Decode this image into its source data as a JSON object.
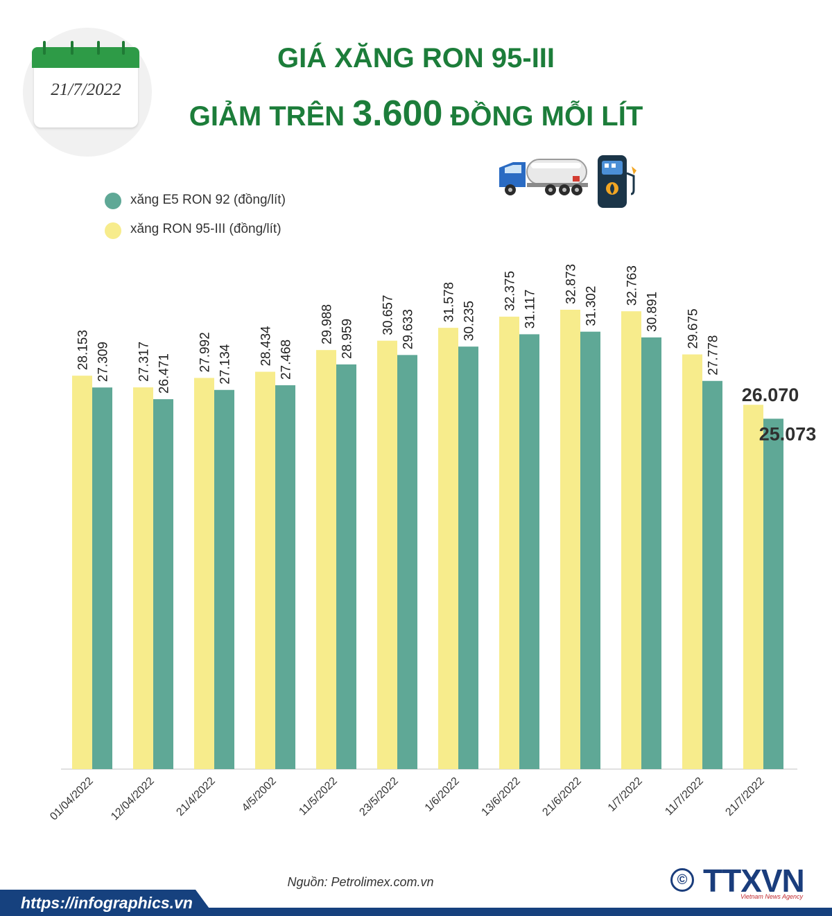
{
  "date_badge": "21/7/2022",
  "title": {
    "line1": "GIÁ XĂNG RON 95-III",
    "line2_prefix": "GIẢM TRÊN",
    "line2_number": "3.600",
    "line2_suffix": "ĐỒNG MỖI LÍT"
  },
  "colors": {
    "title": "#1c7d3a",
    "ron95": "#f7ec8c",
    "e5": "#5fa896",
    "footer": "#16417e"
  },
  "icons": [
    "calendar-icon",
    "fuel-truck-icon",
    "fuel-pump-icon"
  ],
  "chart_data": {
    "type": "bar",
    "categories": [
      "01/04/2022",
      "12/04/2022",
      "21/4/2022",
      "4/5/2002",
      "11/5/2022",
      "23/5/2022",
      "1/6/2022",
      "13/6/2022",
      "21/6/2022",
      "1/7/2022",
      "11/7/2022",
      "21/7/2022"
    ],
    "series": [
      {
        "name": "xăng RON 95-III (đồng/lít)",
        "color": "#f7ec8c",
        "values": [
          28153,
          27317,
          27992,
          28434,
          29988,
          30657,
          31578,
          32375,
          32873,
          32763,
          29675,
          26070
        ],
        "labels": [
          "28.153",
          "27.317",
          "27.992",
          "28.434",
          "29.988",
          "30.657",
          "31.578",
          "32.375",
          "32.873",
          "32.763",
          "29.675",
          "26.070"
        ]
      },
      {
        "name": "xăng E5 RON 92 (đồng/lít)",
        "color": "#5fa896",
        "values": [
          27309,
          26471,
          27134,
          27468,
          28959,
          29633,
          30235,
          31117,
          31302,
          30891,
          27778,
          25073
        ],
        "labels": [
          "27.309",
          "26.471",
          "27.134",
          "27.468",
          "28.959",
          "29.633",
          "30.235",
          "31.117",
          "31.302",
          "30.891",
          "27.778",
          "25.073"
        ]
      }
    ],
    "legend_order": [
      "xăng E5 RON 92 (đồng/lít)",
      "xăng RON 95-III (đồng/lít)"
    ],
    "legend_position": "top-left",
    "ylim": [
      0,
      32873
    ],
    "grid": false
  },
  "source": "Nguồn: Petrolimex.com.vn",
  "footer_url": "https://infographics.vn",
  "logo": {
    "copyright": "©",
    "name": "TTXVN",
    "subtitle": "Vietnam News Agency"
  }
}
